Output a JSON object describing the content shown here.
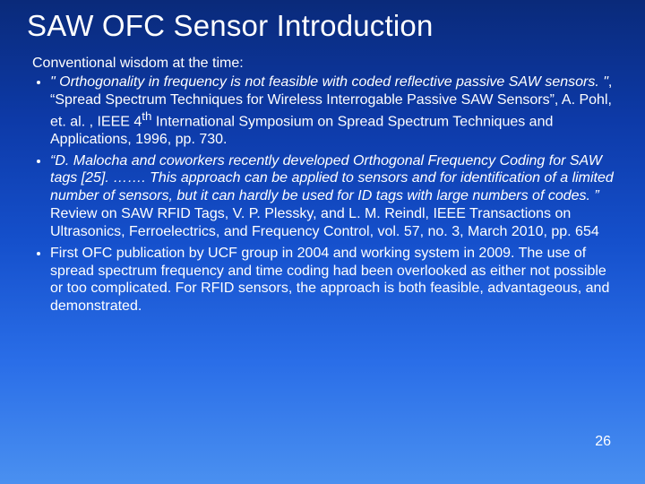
{
  "title": "SAW OFC Sensor Introduction",
  "intro": "Conventional wisdom at the time:",
  "bullets": [
    {
      "quote": "\" Orthogonality in frequency is not feasible with coded reflective passive SAW sensors. \"",
      "rest": ", “Spread Spectrum Techniques for Wireless Interrogable Passive SAW Sensors”, A. Pohl, et. al. ,  IEEE 4",
      "sup": "th",
      "tail": " International Symposium on Spread Spectrum Techniques and Applications, 1996, pp. 730."
    },
    {
      "quote": "“D. Malocha and coworkers recently developed Orthogonal Frequency Coding for SAW tags [25]. ……. This approach can be applied to sensors and for identification of a limited number of sensors, but it can hardly be used for ID tags with large numbers of codes. ”",
      "rest": " Review on SAW RFID Tags, V. P. Plessky, and L. M. Reindl, IEEE Transactions on Ultrasonics, Ferroelectrics, and Frequency Control, vol. 57, no. 3, March 2010, pp. 654",
      "sup": "",
      "tail": ""
    },
    {
      "quote": "",
      "rest": "First OFC publication by UCF group in 2004 and working system in 2009.  The use of spread spectrum frequency and time coding had been overlooked as either not possible or too complicated.  For RFID sensors, the approach is both feasible, advantageous, and demonstrated.",
      "sup": "",
      "tail": ""
    }
  ],
  "page_number": "26",
  "colors": {
    "text": "#ffffff"
  }
}
